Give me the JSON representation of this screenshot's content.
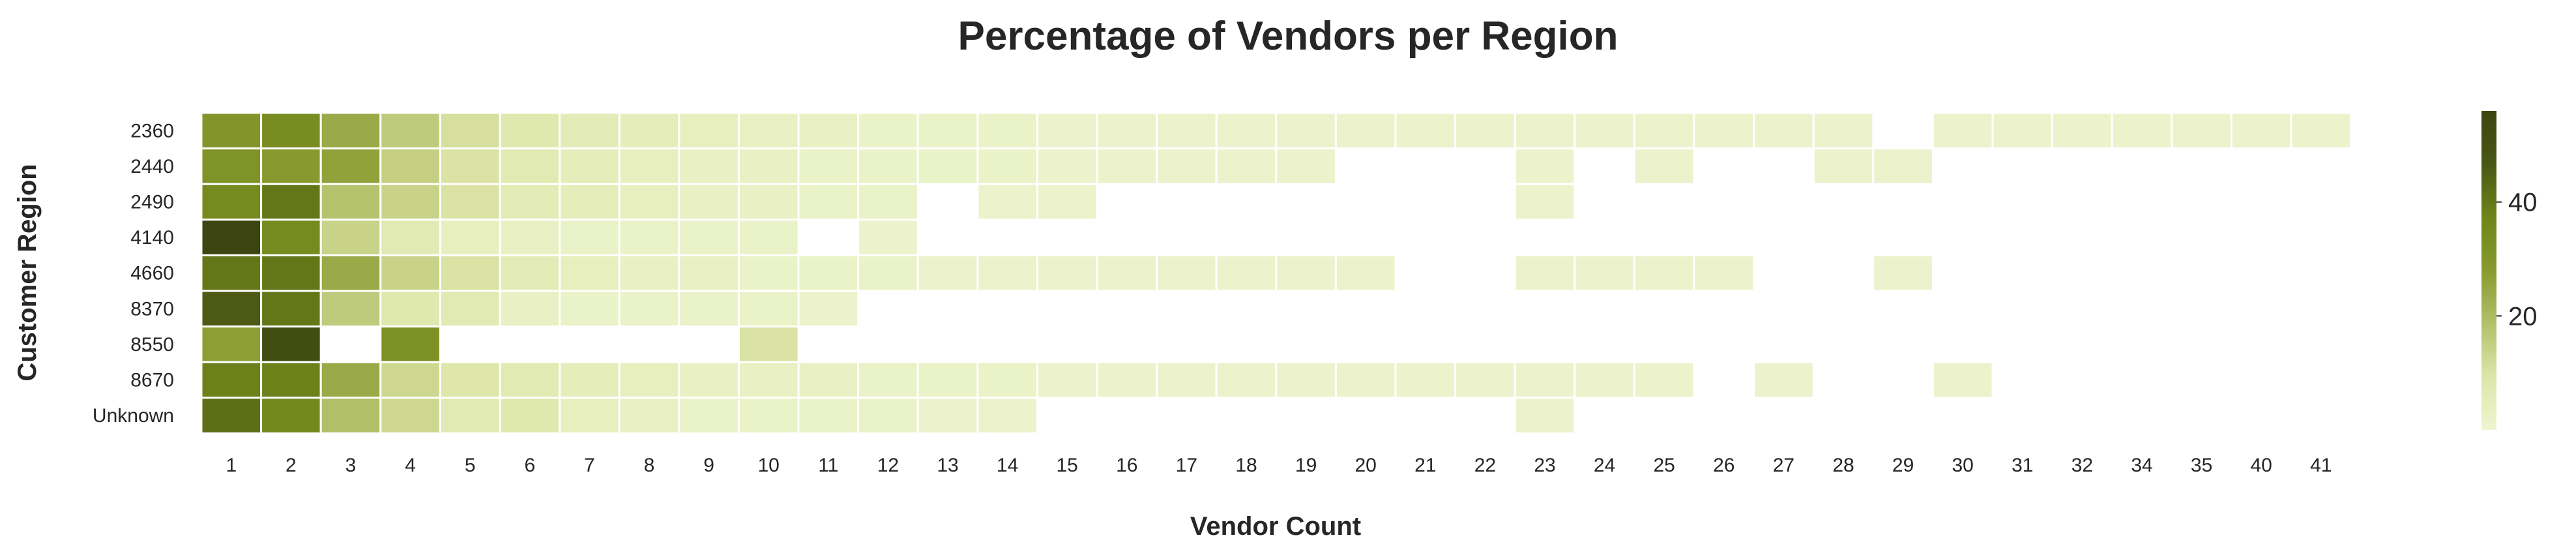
{
  "chart_data": {
    "type": "heatmap",
    "title": "Percentage of Vendors per Region",
    "xlabel": "Vendor Count",
    "ylabel": "Customer Region",
    "x_categories": [
      "1",
      "2",
      "3",
      "4",
      "5",
      "6",
      "7",
      "8",
      "9",
      "10",
      "11",
      "12",
      "13",
      "14",
      "15",
      "16",
      "17",
      "18",
      "19",
      "20",
      "21",
      "22",
      "23",
      "24",
      "25",
      "26",
      "27",
      "28",
      "29",
      "30",
      "31",
      "32",
      "34",
      "35",
      "40",
      "41"
    ],
    "y_categories": [
      "2360",
      "2440",
      "2490",
      "4140",
      "4660",
      "8370",
      "8550",
      "8670",
      "Unknown"
    ],
    "values": [
      [
        30,
        34,
        24,
        16,
        11,
        8,
        6,
        5,
        4,
        3,
        3,
        2,
        2,
        2,
        1,
        1,
        1,
        1,
        1,
        1,
        1,
        1,
        1,
        1,
        1,
        1,
        1,
        1,
        null,
        1,
        1,
        1,
        1,
        1,
        1,
        1
      ],
      [
        31,
        28,
        26,
        15,
        10,
        7,
        5,
        4,
        3,
        3,
        2,
        2,
        2,
        2,
        1,
        1,
        1,
        1,
        1,
        null,
        null,
        null,
        1,
        null,
        1,
        null,
        null,
        1,
        1,
        null,
        null,
        null,
        null,
        null,
        null,
        null
      ],
      [
        35,
        40,
        18,
        14,
        10,
        6,
        5,
        4,
        3,
        3,
        2,
        2,
        null,
        1,
        1,
        null,
        null,
        null,
        null,
        null,
        null,
        null,
        1,
        null,
        null,
        null,
        null,
        null,
        null,
        null,
        null,
        null,
        null,
        null,
        null,
        null
      ],
      [
        56,
        35,
        14,
        7,
        4,
        3,
        2,
        2,
        2,
        2,
        null,
        1,
        null,
        null,
        null,
        null,
        null,
        null,
        null,
        null,
        null,
        null,
        null,
        null,
        null,
        null,
        null,
        null,
        null,
        null,
        null,
        null,
        null,
        null,
        null,
        null
      ],
      [
        40,
        40,
        24,
        14,
        10,
        6,
        4,
        3,
        3,
        2,
        2,
        2,
        1,
        1,
        1,
        1,
        1,
        1,
        1,
        1,
        null,
        null,
        1,
        1,
        1,
        1,
        null,
        null,
        1,
        null,
        null,
        null,
        null,
        null,
        null,
        null
      ],
      [
        46,
        40,
        16,
        8,
        7,
        3,
        2,
        2,
        2,
        2,
        1,
        null,
        null,
        null,
        null,
        null,
        null,
        null,
        null,
        null,
        null,
        null,
        null,
        null,
        null,
        null,
        null,
        null,
        null,
        null,
        null,
        null,
        null,
        null,
        null,
        null
      ],
      [
        27,
        52,
        null,
        32,
        null,
        null,
        null,
        null,
        null,
        10,
        null,
        null,
        null,
        null,
        null,
        null,
        null,
        null,
        null,
        null,
        null,
        null,
        null,
        null,
        null,
        null,
        null,
        null,
        null,
        null,
        null,
        null,
        null,
        null,
        null,
        null
      ],
      [
        38,
        38,
        24,
        13,
        9,
        7,
        5,
        4,
        3,
        3,
        3,
        2,
        2,
        2,
        1,
        1,
        1,
        1,
        1,
        1,
        1,
        1,
        1,
        1,
        1,
        null,
        1,
        null,
        null,
        1,
        null,
        null,
        null,
        null,
        null,
        null
      ],
      [
        42,
        36,
        19,
        13,
        7,
        8,
        4,
        3,
        2,
        2,
        2,
        2,
        1,
        1,
        null,
        null,
        null,
        null,
        null,
        null,
        null,
        null,
        1,
        null,
        null,
        null,
        null,
        null,
        null,
        null,
        null,
        null,
        null,
        null,
        null,
        null
      ]
    ],
    "vmin": 0,
    "vmax": 56,
    "colorbar_ticks": [
      20,
      40
    ],
    "colormap": [
      "#eef5d0",
      "#dde6a8",
      "#b3c06a",
      "#889a2e",
      "#6f841a",
      "#4a5714",
      "#3c4510"
    ],
    "grid": false,
    "legend": "colorbar-right"
  }
}
